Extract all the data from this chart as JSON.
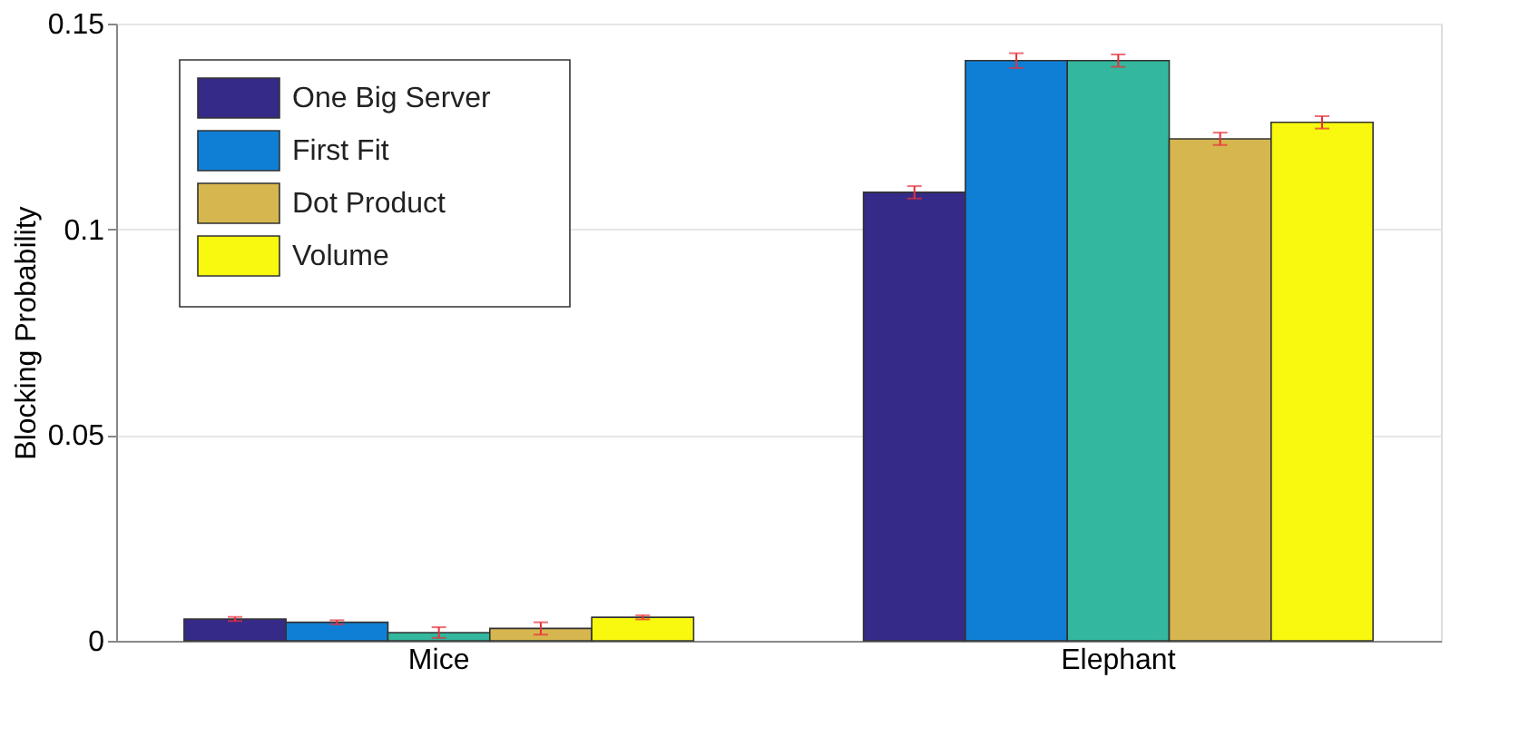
{
  "chart_data": {
    "type": "bar",
    "ylabel": "Blocking Probability",
    "categories": [
      "Mice",
      "Elephant"
    ],
    "series": [
      {
        "name": "One Big Server",
        "color": "#352a87",
        "values": [
          0.0053,
          0.109
        ],
        "errors": [
          0.0005,
          0.0015
        ]
      },
      {
        "name": "First Fit",
        "color": "#0f7fd6",
        "values": [
          0.0045,
          0.141
        ],
        "errors": [
          0.0005,
          0.0018
        ]
      },
      {
        "color": "#33b79e",
        "values": [
          0.002,
          0.141
        ],
        "errors": [
          0.0013,
          0.0015
        ]
      },
      {
        "name": "Dot Product",
        "color": "#d6b64f",
        "values": [
          0.003,
          0.122
        ],
        "errors": [
          0.0015,
          0.0015
        ]
      },
      {
        "name": "Volume",
        "color": "#f8f90e",
        "values": [
          0.0057,
          0.126
        ],
        "errors": [
          0.0005,
          0.0015
        ]
      }
    ],
    "ylim": [
      0,
      0.15
    ],
    "yticks": [
      0,
      0.05,
      0.1,
      0.15
    ],
    "grid": "y",
    "legend": "top left"
  }
}
